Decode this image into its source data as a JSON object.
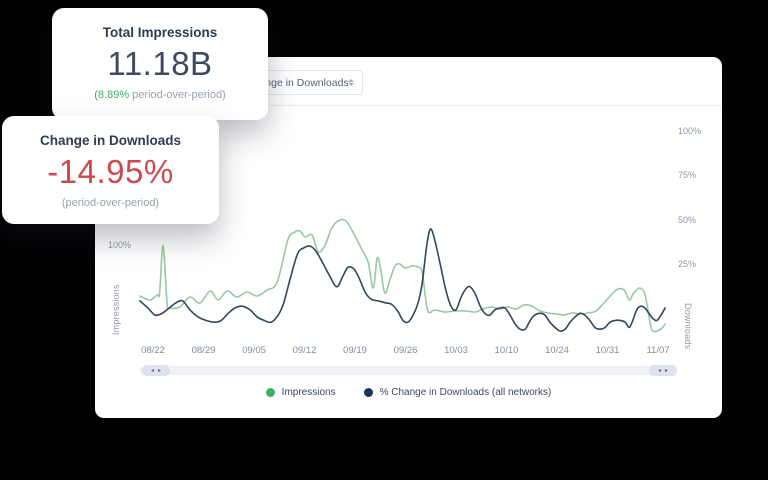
{
  "cards": {
    "impressions": {
      "title": "Total Impressions",
      "value": "11.18B",
      "delta": "(8.89%",
      "delta_rest": " period-over-period)"
    },
    "downloads": {
      "title": "Change in Downloads",
      "value": "-14.95%",
      "sub": "(period-over-period)"
    }
  },
  "panel": {
    "dropdown": {
      "value": "Change in Downloads"
    },
    "scrollbar": {
      "left_arrow": "◂",
      "right_arrow": "▸"
    }
  },
  "colors": {
    "accent_green": "#41ab66",
    "accent_red": "#cc4a4e",
    "line_green": "#97c9a1",
    "line_navy": "#32465e"
  },
  "chart_data": {
    "type": "line",
    "title": "",
    "x_tick_labels": [
      "08/22",
      "08/29",
      "09/05",
      "09/12",
      "09/19",
      "09/26",
      "10/03",
      "10/10",
      "10/24",
      "10/31",
      "11/07"
    ],
    "left_axis": {
      "title": "Impressions",
      "unit": "%",
      "tick_labels": [
        "100%"
      ],
      "tick_values": [
        100
      ]
    },
    "right_axis": {
      "title": "Downloads",
      "unit": "%",
      "tick_labels": [
        "100%",
        "75%",
        "50%",
        "25%"
      ],
      "tick_values": [
        100,
        75,
        50,
        25
      ]
    },
    "grid": "off",
    "legend_position": "bottom-center",
    "legend": [
      {
        "label": "Impressions",
        "color": "#3cb163"
      },
      {
        "label": "% Change in Downloads (all networks)",
        "color": "#1d3150"
      }
    ],
    "series": [
      {
        "name": "Impressions",
        "axis": "left",
        "color": "#97c9a1",
        "points": [
          [
            -0.26,
            49
          ],
          [
            -0.06,
            45
          ],
          [
            0.08,
            50
          ],
          [
            0.13,
            52
          ],
          [
            0.2,
            99
          ],
          [
            0.28,
            42
          ],
          [
            0.34,
            37
          ],
          [
            0.53,
            38
          ],
          [
            0.73,
            48
          ],
          [
            0.93,
            42
          ],
          [
            1.13,
            54
          ],
          [
            1.29,
            45
          ],
          [
            1.47,
            54
          ],
          [
            1.66,
            48
          ],
          [
            1.86,
            53
          ],
          [
            2.06,
            49
          ],
          [
            2.26,
            55
          ],
          [
            2.46,
            63
          ],
          [
            2.67,
            105
          ],
          [
            2.81,
            113
          ],
          [
            2.91,
            114
          ],
          [
            3.01,
            108
          ],
          [
            3.15,
            110
          ],
          [
            3.27,
            93
          ],
          [
            3.41,
            100
          ],
          [
            3.54,
            117
          ],
          [
            3.7,
            125
          ],
          [
            3.84,
            123
          ],
          [
            4.0,
            109
          ],
          [
            4.14,
            95
          ],
          [
            4.26,
            83
          ],
          [
            4.36,
            57
          ],
          [
            4.44,
            87
          ],
          [
            4.51,
            75
          ],
          [
            4.59,
            52
          ],
          [
            4.69,
            65
          ],
          [
            4.79,
            79
          ],
          [
            4.89,
            81
          ],
          [
            4.99,
            77
          ],
          [
            5.13,
            79
          ],
          [
            5.25,
            78
          ],
          [
            5.33,
            73
          ],
          [
            5.39,
            50
          ],
          [
            5.45,
            33
          ],
          [
            5.58,
            35
          ],
          [
            5.78,
            33
          ],
          [
            5.98,
            34
          ],
          [
            6.18,
            34
          ],
          [
            6.38,
            33
          ],
          [
            6.53,
            36
          ],
          [
            6.71,
            38
          ],
          [
            6.87,
            36
          ],
          [
            7.03,
            38
          ],
          [
            7.19,
            36
          ],
          [
            7.35,
            40
          ],
          [
            7.5,
            39
          ],
          [
            7.66,
            34
          ],
          [
            7.82,
            32
          ],
          [
            7.98,
            31
          ],
          [
            8.14,
            30
          ],
          [
            8.3,
            32
          ],
          [
            8.46,
            31
          ],
          [
            8.61,
            32
          ],
          [
            8.77,
            34
          ],
          [
            8.93,
            42
          ],
          [
            9.09,
            51
          ],
          [
            9.21,
            56
          ],
          [
            9.33,
            55
          ],
          [
            9.43,
            45
          ],
          [
            9.52,
            52
          ],
          [
            9.64,
            57
          ],
          [
            9.74,
            51
          ],
          [
            9.82,
            29
          ],
          [
            9.88,
            15
          ],
          [
            9.98,
            14
          ],
          [
            10.08,
            17
          ],
          [
            10.14,
            21
          ]
        ]
      },
      {
        "name": "% Change in Downloads (all networks)",
        "axis": "right",
        "color": "#32465e",
        "points": [
          [
            -0.26,
            4
          ],
          [
            -0.1,
            0
          ],
          [
            0.04,
            -4
          ],
          [
            0.18,
            -3
          ],
          [
            0.32,
            0
          ],
          [
            0.46,
            3
          ],
          [
            0.59,
            4
          ],
          [
            0.73,
            -1
          ],
          [
            0.89,
            -5
          ],
          [
            1.05,
            -7
          ],
          [
            1.21,
            -8
          ],
          [
            1.35,
            -7
          ],
          [
            1.49,
            -3
          ],
          [
            1.62,
            0
          ],
          [
            1.76,
            1
          ],
          [
            1.92,
            -1
          ],
          [
            2.06,
            -5
          ],
          [
            2.2,
            -7
          ],
          [
            2.34,
            -8
          ],
          [
            2.48,
            -4
          ],
          [
            2.59,
            3
          ],
          [
            2.73,
            18
          ],
          [
            2.87,
            31
          ],
          [
            2.99,
            34
          ],
          [
            3.11,
            35
          ],
          [
            3.23,
            32
          ],
          [
            3.37,
            25
          ],
          [
            3.5,
            18
          ],
          [
            3.64,
            12
          ],
          [
            3.76,
            18
          ],
          [
            3.86,
            23
          ],
          [
            3.98,
            22
          ],
          [
            4.08,
            17
          ],
          [
            4.2,
            9
          ],
          [
            4.32,
            5
          ],
          [
            4.46,
            4
          ],
          [
            4.59,
            3
          ],
          [
            4.73,
            2
          ],
          [
            4.85,
            -2
          ],
          [
            4.95,
            -7
          ],
          [
            5.05,
            -8
          ],
          [
            5.15,
            -4
          ],
          [
            5.25,
            3
          ],
          [
            5.33,
            14
          ],
          [
            5.41,
            33
          ],
          [
            5.47,
            43
          ],
          [
            5.52,
            44
          ],
          [
            5.6,
            36
          ],
          [
            5.7,
            23
          ],
          [
            5.8,
            10
          ],
          [
            5.9,
            1
          ],
          [
            6.0,
            -1
          ],
          [
            6.1,
            6
          ],
          [
            6.2,
            11
          ],
          [
            6.28,
            12
          ],
          [
            6.38,
            8
          ],
          [
            6.48,
            1
          ],
          [
            6.57,
            -3
          ],
          [
            6.67,
            -4
          ],
          [
            6.77,
            -1
          ],
          [
            6.87,
            0
          ],
          [
            6.97,
            0
          ],
          [
            7.07,
            -4
          ],
          [
            7.17,
            -9
          ],
          [
            7.27,
            -12
          ],
          [
            7.37,
            -12
          ],
          [
            7.47,
            -7
          ],
          [
            7.56,
            -4
          ],
          [
            7.66,
            -3
          ],
          [
            7.76,
            -4
          ],
          [
            7.86,
            -8
          ],
          [
            7.96,
            -11
          ],
          [
            8.06,
            -13
          ],
          [
            8.16,
            -12
          ],
          [
            8.26,
            -8
          ],
          [
            8.36,
            -5
          ],
          [
            8.46,
            -3
          ],
          [
            8.55,
            -4
          ],
          [
            8.65,
            -7
          ],
          [
            8.75,
            -11
          ],
          [
            8.85,
            -12
          ],
          [
            8.95,
            -11
          ],
          [
            9.05,
            -8
          ],
          [
            9.15,
            -7
          ],
          [
            9.25,
            -7
          ],
          [
            9.35,
            -8
          ],
          [
            9.43,
            -11
          ],
          [
            9.5,
            -7
          ],
          [
            9.58,
            -1
          ],
          [
            9.66,
            1
          ],
          [
            9.74,
            0
          ],
          [
            9.82,
            -3
          ],
          [
            9.9,
            -6
          ],
          [
            9.98,
            -7
          ],
          [
            10.06,
            -4
          ],
          [
            10.14,
            0
          ]
        ]
      }
    ]
  }
}
